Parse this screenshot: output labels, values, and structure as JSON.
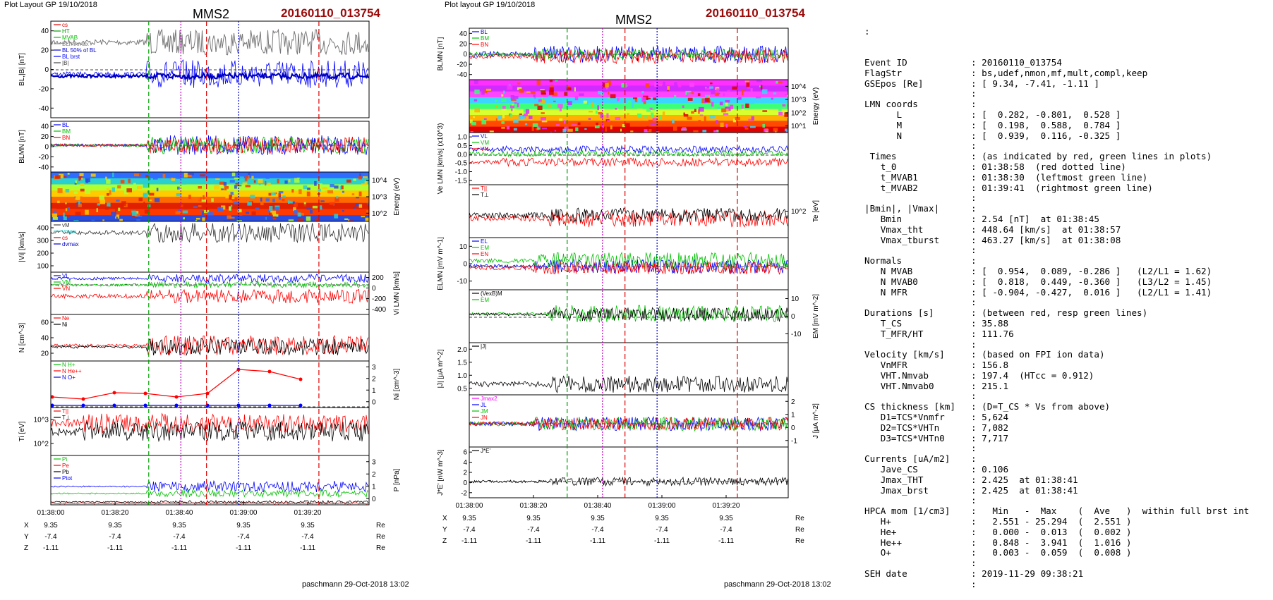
{
  "left": {
    "header": "Plot Layout GP 19/10/2018",
    "title": "MMS2",
    "event": "20160110_013754",
    "footer": "paschmann 29-Oct-2018 13:02",
    "time_ticks": [
      "01:38:00",
      "01:38:20",
      "01:38:40",
      "01:39:00",
      "01:39:20"
    ],
    "panels": [
      {
        "ylabel": "BL,|B| [nT]",
        "ticks": [
          "40",
          "20",
          "0",
          "-20",
          "-40"
        ],
        "legend": [
          "cs",
          "HT",
          "MVAB",
          "BLminmax",
          "BL 50% of BL",
          "BL brst",
          "|B|"
        ],
        "legend_colors": [
          "#e00000",
          "#00a000",
          "#00c000",
          "#888888",
          "#0000d0",
          "#0000ff",
          "#444444"
        ]
      },
      {
        "ylabel": "BLMN [nT]",
        "ticks": [
          "40",
          "20",
          "0",
          "-20",
          "-40"
        ],
        "legend": [
          "BL",
          "BM",
          "BN"
        ],
        "legend_colors": [
          "#0000ff",
          "#00c000",
          "#ff0000"
        ]
      },
      {
        "ylabel_right": "Energy (eV)",
        "ticks_right": [
          "10^4",
          "10^3",
          "10^2"
        ]
      },
      {
        "ylabel": "|Vi| [km/s]",
        "ticks": [
          "400",
          "300",
          "200",
          "100"
        ],
        "legend": [
          "vM",
          "vmax",
          "cs",
          "dvmax"
        ],
        "legend_colors": [
          "#444444",
          "#00c0c0",
          "#e00000",
          "#0000d0"
        ]
      },
      {
        "ylabel_right": "Vi LMN [km/s]",
        "ticks_right": [
          "200",
          "0",
          "-200",
          "-400"
        ],
        "legend": [
          "VL",
          "VM",
          "VN"
        ],
        "legend_colors": [
          "#0000ff",
          "#00c000",
          "#ff0000"
        ]
      },
      {
        "ylabel": "N [cm^-3]",
        "ticks": [
          "60",
          "40",
          "20"
        ],
        "legend": [
          "Ne",
          "Ni"
        ],
        "legend_colors": [
          "#ff0000",
          "#000000"
        ]
      },
      {
        "ylabel_right": "Ni [cm^-3]",
        "ticks_right": [
          "3",
          "2",
          "1",
          "0"
        ],
        "legend": [
          "N H+",
          "N He++",
          "N O+"
        ],
        "legend_colors": [
          "#00c000",
          "#ff0000",
          "#0000ff"
        ]
      },
      {
        "ylabel": "Ti [eV]",
        "ticks": [
          "10^3",
          "10^2"
        ],
        "legend": [
          "T||",
          "T⊥"
        ],
        "legend_colors": [
          "#ff0000",
          "#000000"
        ]
      },
      {
        "ylabel_right": "P [nPa]",
        "ticks_right": [
          "3",
          "2",
          "1",
          "0"
        ],
        "legend": [
          "Pi",
          "Pe",
          "Pb",
          "Ptot"
        ],
        "legend_colors": [
          "#00c000",
          "#ff0000",
          "#000000",
          "#0000ff"
        ]
      }
    ],
    "ephem": {
      "labels": [
        "X",
        "Y",
        "Z"
      ],
      "x": [
        "9.35",
        "9.35",
        "9.35",
        "9.35",
        "9.35"
      ],
      "y": [
        "-7.4",
        "-7.4",
        "-7.4",
        "-7.4",
        "-7.4"
      ],
      "z": [
        "-1.11",
        "-1.11",
        "-1.11",
        "-1.11",
        "-1.11"
      ],
      "unit": "Re"
    }
  },
  "middle": {
    "header": "Plot layout GP 19/10/2018",
    "title": "MMS2",
    "event": "20160110_013754",
    "footer": "paschmann 29-Oct-2018 13:02",
    "time_ticks": [
      "01:38:00",
      "01:38:20",
      "01:38:40",
      "01:39:00",
      "01:39:20"
    ],
    "panels": [
      {
        "ylabel": "BLMN [nT]",
        "ticks": [
          "40",
          "20",
          "0",
          "-20",
          "-40"
        ],
        "legend": [
          "BL",
          "BM",
          "BN"
        ],
        "legend_colors": [
          "#0000ff",
          "#00c000",
          "#ff0000"
        ]
      },
      {
        "ylabel_right": "Energy (eV)",
        "ticks_right": [
          "10^4",
          "10^3",
          "10^2",
          "10^1"
        ]
      },
      {
        "ylabel": "Ve LMN [km/s] (x10^3)",
        "ticks": [
          "1.0",
          "0.5",
          "0.0",
          "-0.5",
          "-1.0",
          "-1.5"
        ],
        "legend": [
          "VL",
          "VM",
          "VN"
        ],
        "legend_colors": [
          "#0000ff",
          "#00c000",
          "#ff0000"
        ]
      },
      {
        "ylabel_right": "Te [eV]",
        "ticks_right": [
          "10^2"
        ],
        "legend": [
          "T||",
          "T⊥"
        ],
        "legend_colors": [
          "#ff0000",
          "#000000"
        ]
      },
      {
        "ylabel": "ELMN [mV m^-1]",
        "ticks": [
          "10",
          "0",
          "-10"
        ],
        "legend": [
          "EL",
          "EM",
          "EN"
        ],
        "legend_colors": [
          "#0000ff",
          "#00c000",
          "#ff0000"
        ]
      },
      {
        "ylabel_right": "EM [mV m^-2]",
        "ticks_right": [
          "10",
          "0",
          "-10"
        ],
        "legend": [
          "(VexB)M",
          "EM"
        ],
        "legend_colors": [
          "#000000",
          "#00c000"
        ]
      },
      {
        "ylabel": "|J| [μA m^-2]",
        "ticks": [
          "2.0",
          "1.5",
          "1.0",
          "0.5"
        ],
        "legend": [
          "|J|"
        ],
        "legend_colors": [
          "#000000"
        ]
      },
      {
        "ylabel_right": "J [μA m^-2]",
        "ticks_right": [
          "2",
          "1",
          "0",
          "-1"
        ],
        "legend": [
          "Jmax2",
          "JL",
          "JM",
          "JN"
        ],
        "legend_colors": [
          "#ff00ff",
          "#0000ff",
          "#00c000",
          "#ff0000"
        ]
      },
      {
        "ylabel": "J*E' [nW m^-3]",
        "ticks": [
          "6",
          "4",
          "2",
          "0",
          "-2"
        ],
        "legend": [
          "J*E'"
        ],
        "legend_colors": [
          "#000000"
        ]
      }
    ],
    "ephem": {
      "labels": [
        "X",
        "Y",
        "Z"
      ],
      "x": [
        "9.35",
        "9.35",
        "9.35",
        "9.35",
        "9.35"
      ],
      "y": [
        "-7.4",
        "-7.4",
        "-7.4",
        "-7.4",
        "-7.4"
      ],
      "z": [
        "-1.11",
        "-1.11",
        "-1.11",
        "-1.11",
        "-1.11"
      ],
      "unit": "Re"
    }
  },
  "summary": {
    "top_colon": ":",
    "rows": [
      [
        "Event ID",
        ": 20160110_013754"
      ],
      [
        "FlagStr",
        ": bs,udef,nmon,mf,mult,compl,keep"
      ],
      [
        "GSEpos [Re]",
        ": [ 9.34, -7.41, -1.11 ]"
      ],
      [
        "",
        ":"
      ],
      [
        "LMN coords",
        ":"
      ],
      [
        "      L",
        ": [  0.282, -0.801,  0.528 ]"
      ],
      [
        "      M",
        ": [  0.198,  0.588,  0.784 ]"
      ],
      [
        "      N",
        ": [  0.939,  0.116, -0.325 ]"
      ],
      [
        "",
        ":"
      ],
      [
        " Times",
        ": (as indicated by red, green lines in plots)"
      ],
      [
        "   t_0",
        ": 01:38:58  (red dotted line)"
      ],
      [
        "   t_MVAB1",
        ": 01:38:30  (leftmost green line)"
      ],
      [
        "   t_MVAB2",
        ": 01:39:41  (rightmost green line)"
      ],
      [
        "",
        ":"
      ],
      [
        "|Bmin|, |Vmax|",
        ":"
      ],
      [
        "   Bmin",
        ": 2.54 [nT]  at 01:38:45"
      ],
      [
        "   Vmax_tht",
        ": 448.64 [km/s]  at 01:38:57"
      ],
      [
        "   Vmax_tburst",
        ": 463.27 [km/s]  at 01:38:08"
      ],
      [
        "",
        ":"
      ],
      [
        "Normals",
        ":"
      ],
      [
        "   N MVAB",
        ": [  0.954,  0.089, -0.286 ]   (L2/L1 = 1.62)"
      ],
      [
        "   N MVAB0",
        ": [  0.818,  0.449, -0.360 ]   (L3/L2 = 1.45)"
      ],
      [
        "   N MFR",
        ": [ -0.904, -0.427,  0.016 ]   (L2/L1 = 1.41)"
      ],
      [
        "",
        ":"
      ],
      [
        "Durations [s]",
        ": (between red, resp green lines)"
      ],
      [
        "   T_CS",
        ": 35.88"
      ],
      [
        "   T_MFR/HT",
        ": 111.76"
      ],
      [
        "",
        ":"
      ],
      [
        "Velocity [km/s]",
        ": (based on FPI ion data)"
      ],
      [
        "   VnMFR",
        ": 156.8"
      ],
      [
        "   VHT.Nmvab",
        ": 197.4  (HTcc = 0.912)"
      ],
      [
        "   VHT.Nmvab0",
        ": 215.1"
      ],
      [
        "",
        ":"
      ],
      [
        "CS thickness [km]",
        ": (D=T_CS * Vs from above)"
      ],
      [
        "   D1=TCS*Vnmfr",
        ": 5,624"
      ],
      [
        "   D2=TCS*VHTn",
        ": 7,082"
      ],
      [
        "   D3=TCS*VHTn0",
        ": 7,717"
      ],
      [
        "",
        ":"
      ],
      [
        "Currents [uA/m2]",
        ":"
      ],
      [
        "   Jave_CS",
        ": 0.106"
      ],
      [
        "   Jmax_THT",
        ": 2.425  at 01:38:41"
      ],
      [
        "   Jmax_brst",
        ": 2.425  at 01:38:41"
      ],
      [
        "",
        ":"
      ],
      [
        "HPCA mom [1/cm3]",
        ":   Min   -  Max    (  Ave   )  within full brst int"
      ],
      [
        "   H+",
        ":   2.551 - 25.294  (  2.551 )"
      ],
      [
        "   He+",
        ":   0.000 -  0.013  (  0.002 )"
      ],
      [
        "   He++",
        ":   0.848 -  3.941  (  1.016 )"
      ],
      [
        "   O+",
        ":   0.003 -  0.059  (  0.008 )"
      ],
      [
        "",
        ":"
      ],
      [
        "SEH date",
        ": 2019-11-29 09:38:21"
      ],
      [
        "",
        ":"
      ]
    ]
  },
  "colors": {
    "event_title": "#9b0a0a",
    "red_line": "#e00000",
    "green_line": "#00a000",
    "blue_line": "#0000d0",
    "magenta_line": "#c000c0"
  }
}
